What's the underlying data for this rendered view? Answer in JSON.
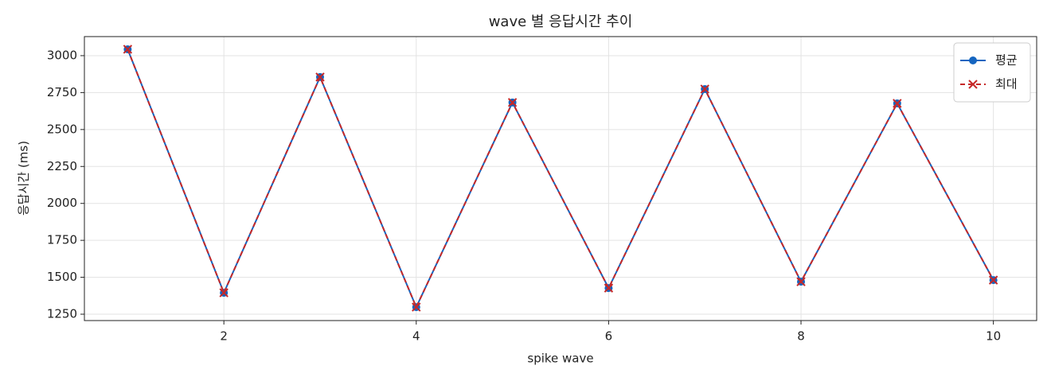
{
  "chart_data": {
    "type": "line",
    "title": "wave 별 응답시간 추이",
    "x_label": "spike wave",
    "y_label": "응답시간 (ms)",
    "x": [
      1,
      2,
      3,
      4,
      5,
      6,
      7,
      8,
      9,
      10
    ],
    "series": [
      {
        "name": "평균",
        "color": "#1565c0",
        "marker": "o",
        "linestyle": "solid",
        "values": [
          3043,
          1395,
          2855,
          1298,
          2683,
          1427,
          2774,
          1470,
          2677,
          1481
        ]
      },
      {
        "name": "최대",
        "color": "#c62828",
        "marker": "x",
        "linestyle": "dashed",
        "values": [
          3043,
          1395,
          2855,
          1298,
          2683,
          1427,
          2774,
          1470,
          2677,
          1481
        ]
      }
    ],
    "xlim": [
      0.55,
      10.45
    ],
    "xticks": [
      2,
      4,
      6,
      8,
      10
    ],
    "ylim": [
      1207,
      3129
    ],
    "yticks": [
      1250,
      1500,
      1750,
      2000,
      2250,
      2500,
      2750,
      3000
    ],
    "grid": true,
    "legend": "upper right"
  }
}
